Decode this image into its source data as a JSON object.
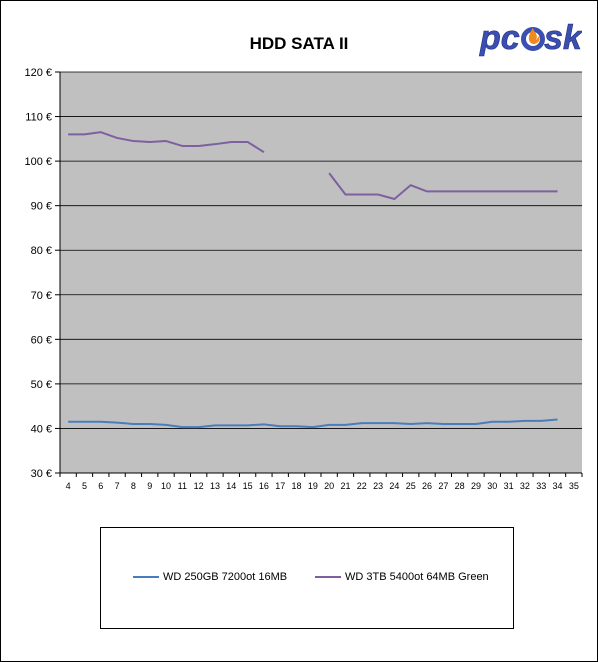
{
  "chart_data": {
    "type": "line",
    "title": "HDD SATA II",
    "x": [
      4,
      5,
      6,
      7,
      8,
      9,
      10,
      11,
      12,
      13,
      14,
      15,
      16,
      17,
      18,
      19,
      20,
      21,
      22,
      23,
      24,
      25,
      26,
      27,
      28,
      29,
      30,
      31,
      32,
      33,
      34,
      35
    ],
    "y_ticks": [
      "30 €",
      "40 €",
      "50 €",
      "60 €",
      "70 €",
      "80 €",
      "90 €",
      "100 €",
      "110 €",
      "120 €"
    ],
    "ylim": [
      30,
      120
    ],
    "grid": true,
    "legend_position": "bottom",
    "series": [
      {
        "name": "WD 250GB 7200ot 16MB",
        "color": "#4a7ebb",
        "values": [
          41.5,
          41.5,
          41.5,
          41.3,
          41.0,
          41.0,
          40.8,
          40.3,
          40.3,
          40.7,
          40.7,
          40.7,
          40.9,
          40.5,
          40.5,
          40.3,
          40.8,
          40.8,
          41.2,
          41.2,
          41.2,
          41.0,
          41.2,
          41.0,
          41.0,
          41.0,
          41.5,
          41.5,
          41.7,
          41.7,
          42.0,
          null
        ]
      },
      {
        "name": "WD 3TB 5400ot 64MB Green",
        "color": "#7d60a0",
        "values": [
          106.0,
          106.0,
          106.5,
          105.2,
          104.5,
          104.3,
          104.5,
          103.4,
          103.4,
          103.8,
          104.3,
          104.3,
          102.0,
          null,
          null,
          null,
          97.3,
          92.5,
          92.5,
          92.5,
          91.5,
          94.6,
          93.2,
          93.2,
          93.2,
          93.2,
          93.2,
          93.2,
          93.2,
          93.2,
          93.2,
          null
        ]
      }
    ]
  },
  "logo": {
    "text": "pcosk",
    "colors": {
      "primary": "#3a4fb0",
      "flame": "#f08a1c"
    }
  }
}
